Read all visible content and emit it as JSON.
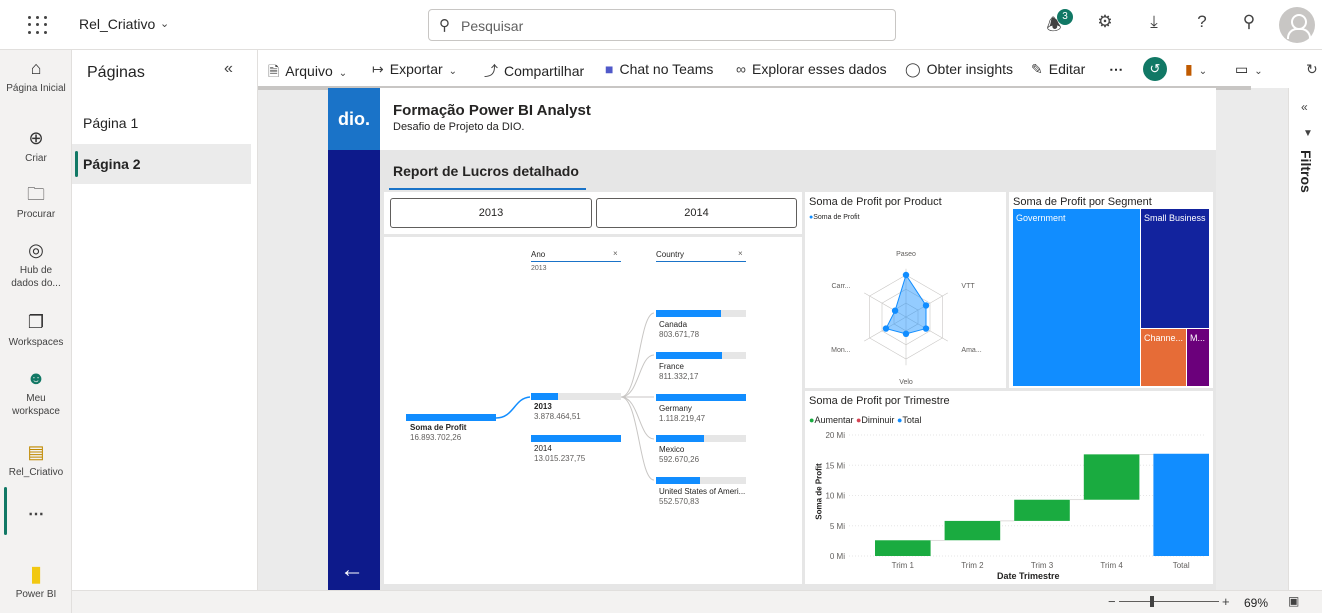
{
  "topbar": {
    "workspace": "Rel_Criativo",
    "search_placeholder": "Pesquisar",
    "notifications_count": "3"
  },
  "leftnav": [
    {
      "label": "Página Inicial",
      "icon": "home-icon"
    },
    {
      "label": "Criar",
      "icon": "plus-circle-icon"
    },
    {
      "label": "Procurar",
      "icon": "folder-icon"
    },
    {
      "label": "Hub de dados do...",
      "icon": "data-hub-icon"
    },
    {
      "label": "Workspaces",
      "icon": "workspaces-icon"
    },
    {
      "label": "Meu workspace",
      "icon": "person-icon"
    },
    {
      "label": "Rel_Criativo",
      "icon": "report-icon"
    },
    {
      "label": "Power BI",
      "icon": "powerbi-icon"
    }
  ],
  "pages_pane": {
    "title": "Páginas",
    "items": [
      "Página 1",
      "Página 2"
    ]
  },
  "toolbar": {
    "arquivo": "Arquivo",
    "exportar": "Exportar",
    "compartilhar": "Compartilhar",
    "chat_teams": "Chat no Teams",
    "explorar": "Explorar esses dados",
    "insights": "Obter insights",
    "editar": "Editar"
  },
  "filters": {
    "label": "Filtros"
  },
  "report": {
    "logo": "dio.",
    "title": "Formação Power BI Analyst",
    "subtitle": "Desafio de Projeto da DIO.",
    "header": "Report de Lucros detalhado",
    "slicer": [
      "2013",
      "2014"
    ],
    "tree": {
      "col_ano": "Ano",
      "col_ano_sub": "2013",
      "col_country": "Country",
      "root_label": "Soma de Profit",
      "root_value": "16.893.702,26",
      "years": [
        {
          "label": "2013",
          "value": "3.878.464,51",
          "fill": 0.3
        },
        {
          "label": "2014",
          "value": "13.015.237,75",
          "fill": 1.0
        }
      ],
      "countries": [
        {
          "label": "Canada",
          "value": "803.671,78",
          "fill": 0.72
        },
        {
          "label": "France",
          "value": "811.332,17",
          "fill": 0.73
        },
        {
          "label": "Germany",
          "value": "1.118.219,47",
          "fill": 1.0
        },
        {
          "label": "Mexico",
          "value": "592.670,26",
          "fill": 0.53
        },
        {
          "label": "United States of Ameri...",
          "value": "552.570,83",
          "fill": 0.49
        }
      ]
    },
    "radar": {
      "title": "Soma de Profit por Product",
      "legend": "Soma de Profit",
      "axes": [
        "Paseo",
        "VTT",
        "Ama...",
        "Velo",
        "Mon...",
        "Carr..."
      ]
    },
    "treemap": {
      "title": "Soma de Profit por Segment",
      "labels": [
        "Government",
        "Small Business",
        "Channe...",
        "M..."
      ]
    },
    "waterfall": {
      "title": "Soma de Profit por Trimestre",
      "legend": [
        "Aumentar",
        "Diminuir",
        "Total"
      ],
      "ylabel": "Soma de Profit",
      "xlabel": "Date Trimestre",
      "yticks": [
        "20 Mi",
        "15 Mi",
        "10 Mi",
        "5 Mi",
        "0 Mi"
      ],
      "categories": [
        "Trim 1",
        "Trim 2",
        "Trim 3",
        "Trim 4",
        "Total"
      ]
    }
  },
  "chart_data": [
    {
      "type": "radar",
      "title": "Soma de Profit por Product",
      "categories": [
        "Paseo",
        "VTT",
        "Amarilla",
        "Velo",
        "Montana",
        "Carretera"
      ],
      "series": [
        {
          "name": "Soma de Profit",
          "values": [
            1.0,
            0.55,
            0.55,
            0.4,
            0.55,
            0.3
          ]
        }
      ]
    },
    {
      "type": "bar",
      "title": "Soma de Profit por Segment",
      "categories": [
        "Government",
        "Small Business",
        "Channel Partners",
        "Midmarket"
      ],
      "values": [
        11.4,
        4.1,
        1.3,
        0.66
      ]
    },
    {
      "type": "bar",
      "title": "Soma de Profit por Trimestre",
      "xlabel": "Date Trimestre",
      "ylabel": "Soma de Profit",
      "categories": [
        "Trim 1",
        "Trim 2",
        "Trim 3",
        "Trim 4",
        "Total"
      ],
      "base": [
        0,
        2.6,
        5.8,
        9.3,
        0
      ],
      "values": [
        2.6,
        3.2,
        3.5,
        7.5,
        16.9
      ],
      "kind": [
        "Aumentar",
        "Aumentar",
        "Aumentar",
        "Aumentar",
        "Total"
      ],
      "ylim": [
        0,
        20
      ],
      "colors": {
        "Aumentar": "#1aab40",
        "Diminuir": "#d64554",
        "Total": "#118dff"
      }
    }
  ]
}
